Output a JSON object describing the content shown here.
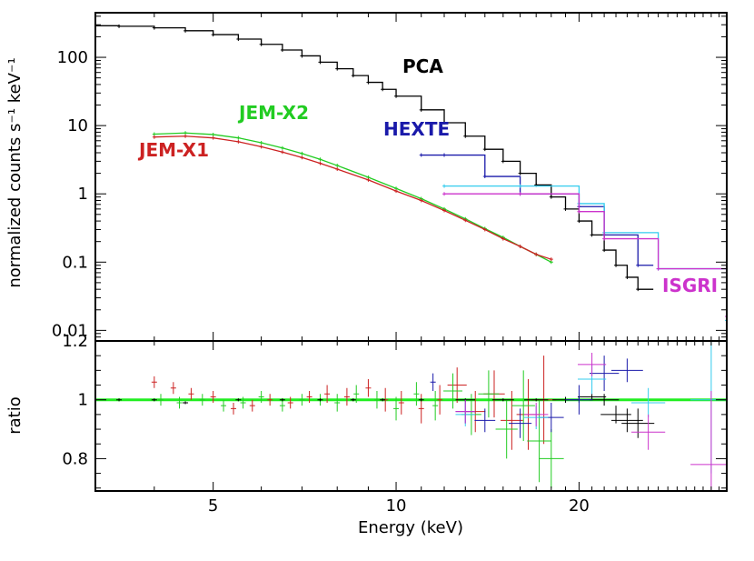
{
  "chart_data": [
    {
      "panel": "top",
      "type": "line",
      "ylabel": "normalized counts s⁻¹ keV⁻¹",
      "xlabel": "",
      "xscale": "log",
      "yscale": "log",
      "xlim": [
        3.2,
        35
      ],
      "ylim": [
        0.007,
        450
      ],
      "y_tick_labels": [
        "0.01",
        "0.1",
        "1",
        "10",
        "100"
      ],
      "y_tick_values": [
        0.01,
        0.1,
        1,
        10,
        100
      ],
      "annotations": [
        {
          "text": "PCA",
          "color": "#000000"
        },
        {
          "text": "JEM-X2",
          "color": "#22cc22"
        },
        {
          "text": "HEXTE",
          "color": "#1a1aaa"
        },
        {
          "text": "JEM-X1",
          "color": "#cc2222"
        },
        {
          "text": "ISGRI",
          "color": "#cc33cc"
        }
      ],
      "series": [
        {
          "name": "PCA",
          "color": "#000000",
          "style": "step",
          "x": [
            3.2,
            3.5,
            4.0,
            4.5,
            5.0,
            5.5,
            6.0,
            6.5,
            7.0,
            7.5,
            8.0,
            8.5,
            9.0,
            9.5,
            10.0,
            11.0,
            12.0,
            13.0,
            14.0,
            15.0,
            16.0,
            17.0,
            18.0,
            19.0,
            20.0,
            21.0,
            22.0,
            23.0,
            24.0,
            25.0
          ],
          "y": [
            290,
            285,
            270,
            245,
            215,
            185,
            155,
            128,
            105,
            85,
            68,
            54,
            43,
            34,
            27,
            17,
            11,
            7.0,
            4.5,
            3.0,
            2.0,
            1.35,
            0.9,
            0.6,
            0.4,
            0.25,
            0.15,
            0.09,
            0.06,
            0.04
          ]
        },
        {
          "name": "JEM-X2",
          "color": "#22cc22",
          "style": "line",
          "x": [
            4.0,
            4.5,
            5.0,
            5.5,
            6.0,
            6.5,
            7.0,
            7.5,
            8.0,
            9.0,
            10.0,
            11.0,
            12.0,
            13.0,
            14.0,
            15.0,
            16.0,
            17.0,
            18.0
          ],
          "y": [
            7.5,
            7.8,
            7.4,
            6.6,
            5.6,
            4.7,
            3.9,
            3.2,
            2.6,
            1.75,
            1.2,
            0.85,
            0.6,
            0.43,
            0.31,
            0.23,
            0.17,
            0.13,
            0.1
          ]
        },
        {
          "name": "JEM-X1",
          "color": "#cc2222",
          "style": "line",
          "x": [
            4.0,
            4.5,
            5.0,
            5.5,
            6.0,
            6.5,
            7.0,
            7.5,
            8.0,
            9.0,
            10.0,
            11.0,
            12.0,
            13.0,
            14.0,
            15.0,
            16.0,
            17.0,
            18.0
          ],
          "y": [
            6.8,
            7.0,
            6.6,
            5.8,
            4.9,
            4.1,
            3.4,
            2.8,
            2.3,
            1.6,
            1.1,
            0.8,
            0.57,
            0.41,
            0.3,
            0.22,
            0.17,
            0.13,
            0.11
          ]
        },
        {
          "name": "HEXTE",
          "color": "#1a1aaa",
          "style": "step",
          "x": [
            11.0,
            12.0,
            14.0,
            16.0,
            20.0,
            22.0,
            25.0
          ],
          "y": [
            3.7,
            3.7,
            1.8,
            1.0,
            0.65,
            0.25,
            0.09
          ]
        },
        {
          "name": "HEXTE-cyan",
          "color": "#33ccee",
          "style": "step",
          "x": [
            12.0,
            16.0,
            20.0,
            22.0,
            27.0,
            35.0
          ],
          "y": [
            1.3,
            1.3,
            0.72,
            0.27,
            0.08,
            0.014
          ]
        },
        {
          "name": "ISGRI",
          "color": "#cc33cc",
          "style": "step",
          "x": [
            12.0,
            16.0,
            20.0,
            22.0,
            27.0,
            35.0
          ],
          "y": [
            1.0,
            1.0,
            0.55,
            0.22,
            0.08,
            0.016
          ]
        }
      ]
    },
    {
      "panel": "bottom",
      "type": "scatter",
      "xlabel": "Energy (keV)",
      "ylabel": "ratio",
      "xscale": "log",
      "yscale": "linear",
      "xlim": [
        3.2,
        35
      ],
      "ylim": [
        0.69,
        1.2
      ],
      "x_tick_labels": [
        "5",
        "10",
        "20"
      ],
      "x_tick_values": [
        5,
        10,
        20
      ],
      "y_tick_labels": [
        "0.8",
        "1",
        "1.2"
      ],
      "y_tick_values": [
        0.8,
        1.0,
        1.2
      ],
      "reference_line": {
        "y": 1.0,
        "color": "#22ee22"
      },
      "series": [
        {
          "name": "JEM-X1 ratio",
          "color": "#cc2222",
          "x": [
            4.0,
            4.3,
            4.6,
            5.0,
            5.4,
            5.8,
            6.2,
            6.7,
            7.2,
            7.7,
            8.3,
            9.0,
            9.6,
            10.2,
            11.0,
            11.8,
            12.6,
            13.5,
            14.5,
            15.5,
            16.5,
            17.5
          ],
          "y": [
            1.06,
            1.04,
            1.02,
            1.01,
            0.97,
            0.98,
            1.0,
            0.99,
            1.01,
            1.02,
            1.01,
            1.04,
            1.0,
            0.99,
            0.97,
            1.0,
            1.05,
            0.96,
            1.02,
            0.93,
            0.95,
            1.0
          ],
          "yerr": [
            0.02,
            0.02,
            0.02,
            0.02,
            0.02,
            0.02,
            0.02,
            0.02,
            0.02,
            0.03,
            0.03,
            0.03,
            0.04,
            0.04,
            0.05,
            0.05,
            0.06,
            0.07,
            0.08,
            0.1,
            0.12,
            0.15
          ]
        },
        {
          "name": "JEM-X2 ratio",
          "color": "#22cc22",
          "x": [
            4.1,
            4.4,
            4.8,
            5.2,
            5.6,
            6.0,
            6.5,
            7.0,
            7.5,
            8.0,
            8.6,
            9.3,
            10.0,
            10.8,
            11.6,
            12.4,
            13.3,
            14.2,
            15.2,
            16.2,
            17.2,
            18.0
          ],
          "y": [
            1.0,
            0.99,
            1.0,
            0.98,
            0.99,
            1.01,
            0.98,
            1.0,
            1.0,
            0.99,
            1.02,
            1.0,
            0.97,
            1.02,
            0.98,
            1.03,
            0.95,
            1.02,
            0.9,
            0.98,
            0.86,
            0.8
          ],
          "yerr": [
            0.02,
            0.02,
            0.02,
            0.02,
            0.02,
            0.02,
            0.02,
            0.02,
            0.02,
            0.03,
            0.03,
            0.03,
            0.04,
            0.04,
            0.05,
            0.06,
            0.07,
            0.08,
            0.1,
            0.12,
            0.14,
            0.1
          ]
        },
        {
          "name": "PCA ratio",
          "color": "#000000",
          "x": [
            3.5,
            4.0,
            4.5,
            5.5,
            6.5,
            7.5,
            8.5,
            9.5,
            11.0,
            13.0,
            15.0,
            17.0,
            19.0,
            20.0,
            21.0,
            22.0,
            23.0,
            24.0,
            25.0
          ],
          "y": [
            1.0,
            1.0,
            0.99,
            1.0,
            1.0,
            1.0,
            1.0,
            1.0,
            1.0,
            1.0,
            1.0,
            1.0,
            1.0,
            1.0,
            1.01,
            1.0,
            0.95,
            0.93,
            0.92
          ],
          "yerr": [
            0.005,
            0.005,
            0.005,
            0.005,
            0.005,
            0.005,
            0.005,
            0.005,
            0.005,
            0.005,
            0.005,
            0.005,
            0.01,
            0.01,
            0.01,
            0.02,
            0.03,
            0.04,
            0.05
          ]
        },
        {
          "name": "HEXTE ratio",
          "color": "#1a1aaa",
          "x": [
            11.5,
            13.0,
            14.0,
            16.0,
            18.0,
            20.0,
            22.0,
            24.0
          ],
          "y": [
            1.06,
            0.96,
            0.93,
            0.92,
            0.94,
            1.0,
            1.09,
            1.1
          ],
          "yerr": [
            0.03,
            0.04,
            0.04,
            0.05,
            0.05,
            0.05,
            0.06,
            0.04
          ]
        },
        {
          "name": "HEXTE-cyan ratio",
          "color": "#33ccee",
          "x": [
            13.0,
            17.0,
            21.0,
            26.0,
            33.0
          ],
          "y": [
            0.95,
            0.94,
            1.07,
            0.99,
            1.0
          ],
          "yerr": [
            0.04,
            0.04,
            0.05,
            0.05,
            0.25
          ]
        },
        {
          "name": "ISGRI ratio",
          "color": "#cc33cc",
          "x": [
            13.0,
            17.0,
            21.0,
            26.0,
            33.0
          ],
          "y": [
            0.96,
            0.95,
            1.12,
            0.89,
            0.78
          ],
          "yerr": [
            0.04,
            0.04,
            0.04,
            0.06,
            0.25
          ]
        }
      ]
    }
  ]
}
